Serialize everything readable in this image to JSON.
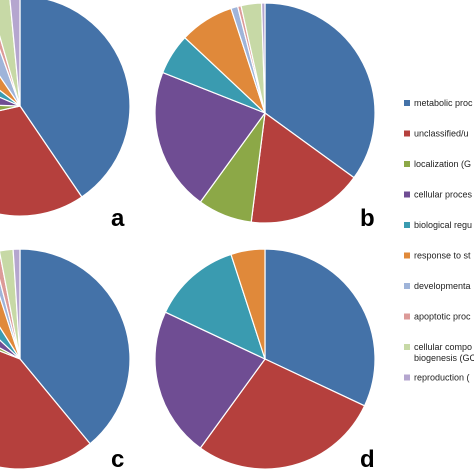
{
  "chart_data": [
    {
      "type": "pie",
      "panel_label": "a",
      "legend_position": "right",
      "slices": [
        {
          "category": "metabolic process",
          "value": 40.5,
          "color": "#4472a8"
        },
        {
          "category": "unclassified",
          "value": 31,
          "color": "#b5403d"
        },
        {
          "category": "localization",
          "value": 4,
          "color": "#8ca847"
        },
        {
          "category": "cellular process",
          "value": 6,
          "color": "#6f4d93"
        },
        {
          "category": "biological regulation",
          "value": 4,
          "color": "#3a9bb0"
        },
        {
          "category": "response to stimulus",
          "value": 5,
          "color": "#e0893a"
        },
        {
          "category": "developmental process",
          "value": 4,
          "color": "#9fb4d9"
        },
        {
          "category": "apoptotic process",
          "value": 1,
          "color": "#dc9a98"
        },
        {
          "category": "cellular component organization or biogenesis",
          "value": 3,
          "color": "#c7d9a6"
        },
        {
          "category": "reproduction",
          "value": 1.5,
          "color": "#b5a6cf"
        }
      ]
    },
    {
      "type": "pie",
      "panel_label": "b",
      "legend_position": "right",
      "slices": [
        {
          "category": "metabolic process",
          "value": 35,
          "color": "#4472a8"
        },
        {
          "category": "unclassified",
          "value": 17,
          "color": "#b5403d"
        },
        {
          "category": "localization",
          "value": 8,
          "color": "#8ca847"
        },
        {
          "category": "cellular process",
          "value": 21,
          "color": "#6f4d93"
        },
        {
          "category": "biological regulation",
          "value": 6,
          "color": "#3a9bb0"
        },
        {
          "category": "response to stimulus",
          "value": 8,
          "color": "#e0893a"
        },
        {
          "category": "developmental process",
          "value": 1,
          "color": "#9fb4d9"
        },
        {
          "category": "apoptotic process",
          "value": 0.5,
          "color": "#dc9a98"
        },
        {
          "category": "cellular component organization or biogenesis",
          "value": 3,
          "color": "#c7d9a6"
        },
        {
          "category": "reproduction",
          "value": 0.5,
          "color": "#b5a6cf"
        }
      ]
    },
    {
      "type": "pie",
      "panel_label": "c",
      "legend_position": "right",
      "slices": [
        {
          "category": "metabolic process",
          "value": 39,
          "color": "#4472a8"
        },
        {
          "category": "unclassified",
          "value": 42,
          "color": "#b5403d"
        },
        {
          "category": "localization",
          "value": 2,
          "color": "#8ca847"
        },
        {
          "category": "cellular process",
          "value": 4,
          "color": "#6f4d93"
        },
        {
          "category": "biological regulation",
          "value": 4,
          "color": "#3a9bb0"
        },
        {
          "category": "response to stimulus",
          "value": 4,
          "color": "#e0893a"
        },
        {
          "category": "developmental process",
          "value": 1,
          "color": "#9fb4d9"
        },
        {
          "category": "apoptotic process",
          "value": 1,
          "color": "#dc9a98"
        },
        {
          "category": "cellular component organization or biogenesis",
          "value": 2,
          "color": "#c7d9a6"
        },
        {
          "category": "reproduction",
          "value": 1,
          "color": "#b5a6cf"
        }
      ]
    },
    {
      "type": "pie",
      "panel_label": "d",
      "legend_position": "right",
      "slices": [
        {
          "category": "metabolic process",
          "value": 32,
          "color": "#4472a8"
        },
        {
          "category": "unclassified",
          "value": 28,
          "color": "#b5403d"
        },
        {
          "category": "cellular process",
          "value": 22,
          "color": "#6f4d93"
        },
        {
          "category": "biological regulation",
          "value": 13,
          "color": "#3a9bb0"
        },
        {
          "category": "response to stimulus",
          "value": 5,
          "color": "#e0893a"
        }
      ]
    }
  ],
  "legend": [
    {
      "label": "metabolic proc",
      "color": "#4472a8"
    },
    {
      "label": "unclassified/u",
      "color": "#b5403d"
    },
    {
      "label": "localization (G",
      "color": "#8ca847"
    },
    {
      "label": "cellular proces",
      "color": "#6f4d93"
    },
    {
      "label": "biological regu",
      "color": "#3a9bb0"
    },
    {
      "label": "response to st",
      "color": "#e0893a"
    },
    {
      "label": "developmenta",
      "color": "#9fb4d9"
    },
    {
      "label": "apoptotic proc",
      "color": "#dc9a98"
    },
    {
      "label": "cellular compo",
      "label2": "biogenesis (GC",
      "color": "#c7d9a6"
    },
    {
      "label": "reproduction (",
      "color": "#b5a6cf"
    }
  ]
}
